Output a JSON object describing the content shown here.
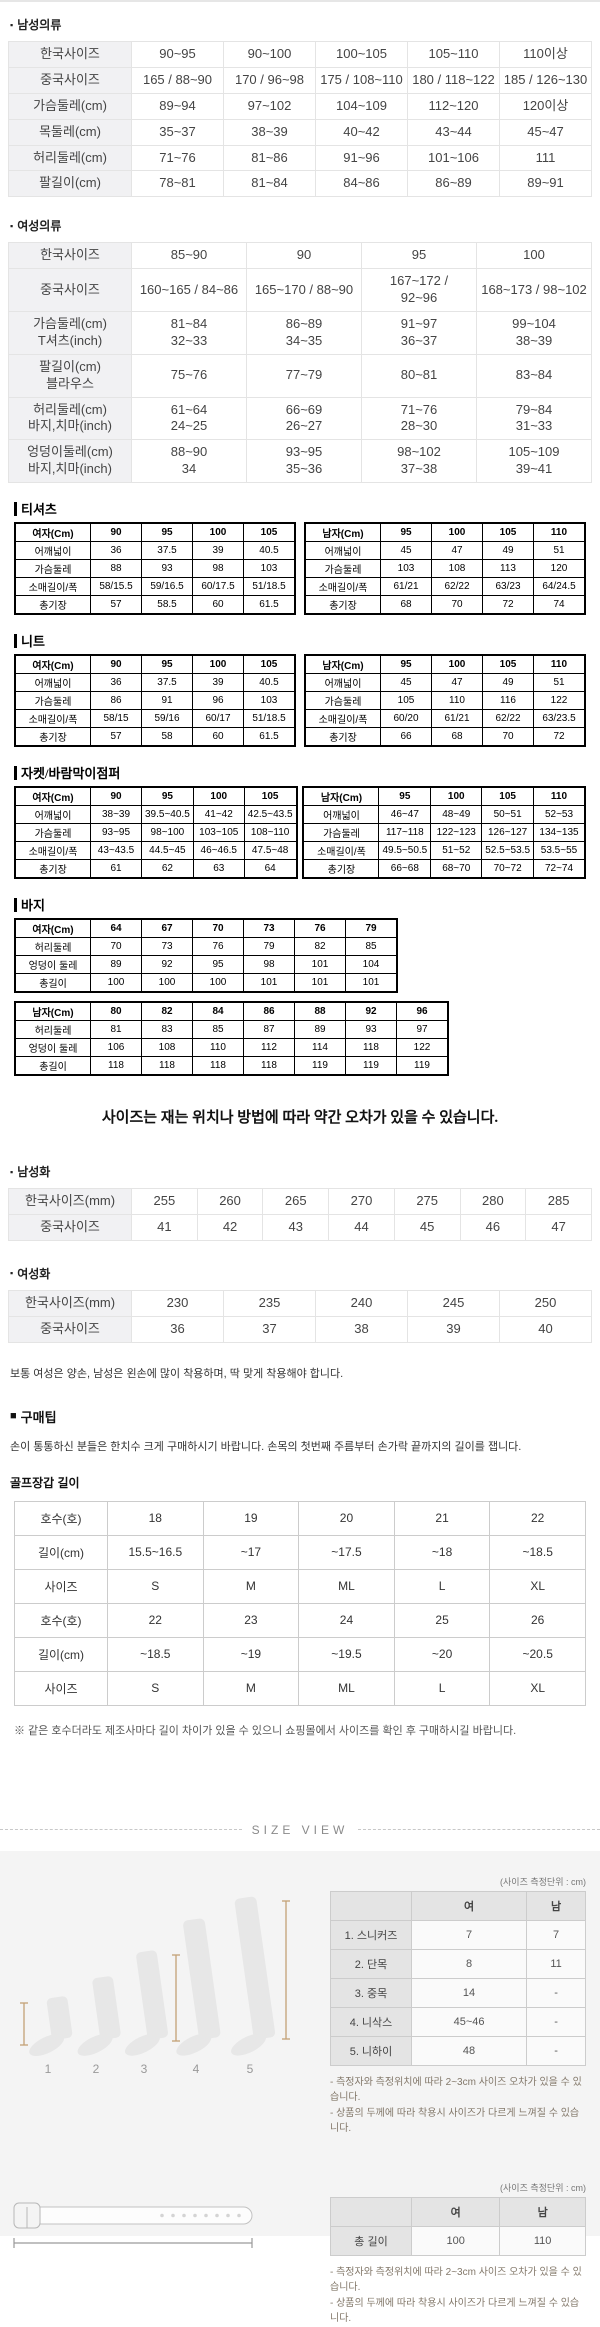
{
  "colors": {
    "panel_bg": "#f4f4f4",
    "grid_label_bg": "#f1f1f3",
    "grid_border": "#e4e4e4",
    "bitmap_border": "#000000",
    "size_view_header_bg": "#e4e4e4",
    "measure_line": "#c4a276",
    "note_brown": "#83786a"
  },
  "sections": {
    "mens_clothing": {
      "bullet": "▪",
      "title": "남성의류",
      "table": {
        "rows": [
          {
            "label": "한국사이즈",
            "values": [
              "90~95",
              "90~100",
              "100~105",
              "105~110",
              "110이상"
            ]
          },
          {
            "label": "중국사이즈",
            "values": [
              "165 / 88~90",
              "170 / 96~98",
              "175 / 108~110",
              "180 / 118~122",
              "185 / 126~130"
            ]
          },
          {
            "label": "가슴둘레(cm)",
            "values": [
              "89~94",
              "97~102",
              "104~109",
              "112~120",
              "120이상"
            ]
          },
          {
            "label": "목둘레(cm)",
            "values": [
              "35~37",
              "38~39",
              "40~42",
              "43~44",
              "45~47"
            ]
          },
          {
            "label": "허리둘레(cm)",
            "values": [
              "71~76",
              "81~86",
              "91~96",
              "101~106",
              "111"
            ]
          },
          {
            "label": "팔길이(cm)",
            "values": [
              "78~81",
              "81~84",
              "84~86",
              "86~89",
              "89~91"
            ]
          }
        ]
      }
    },
    "womens_clothing": {
      "bullet": "▪",
      "title": "여성의류",
      "table": {
        "rows": [
          {
            "label": "한국사이즈",
            "values": [
              "85~90",
              "90",
              "95",
              "100"
            ]
          },
          {
            "label": "중국사이즈",
            "values": [
              "160~165 / 84~86",
              "165~170 / 88~90",
              "167~172 /\n92~96",
              "168~173 / 98~102"
            ]
          },
          {
            "label": "가슴둘레(cm)\nT셔츠(inch)",
            "values": [
              "81~84\n32~33",
              "86~89\n34~35",
              "91~97\n36~37",
              "99~104\n38~39"
            ]
          },
          {
            "label": "팔길이(cm)\n블라우스",
            "values": [
              "75~76",
              "77~79",
              "80~81",
              "83~84"
            ]
          },
          {
            "label": "허리둘레(cm)\n바지,치마(inch)",
            "values": [
              "61~64\n24~25",
              "66~69\n26~27",
              "71~76\n28~30",
              "79~84\n31~33"
            ]
          },
          {
            "label": "엉덩이둘레(cm)\n바지,치마(inch)",
            "values": [
              "88~90\n34",
              "93~95\n35~36",
              "98~102\n37~38",
              "105~109\n39~41"
            ]
          }
        ]
      }
    },
    "tshirt": {
      "title": "티셔츠",
      "women": {
        "header_label": "여자(Cm)",
        "headers": [
          "90",
          "95",
          "100",
          "105"
        ],
        "rows": [
          {
            "label": "어깨넓이",
            "values": [
              "36",
              "37.5",
              "39",
              "40.5"
            ]
          },
          {
            "label": "가슴둘레",
            "values": [
              "88",
              "93",
              "98",
              "103"
            ]
          },
          {
            "label": "소매길이/폭",
            "values": [
              "58/15.5",
              "59/16.5",
              "60/17.5",
              "51/18.5"
            ]
          },
          {
            "label": "총기장",
            "values": [
              "57",
              "58.5",
              "60",
              "61.5"
            ]
          }
        ]
      },
      "men": {
        "header_label": "남자(Cm)",
        "headers": [
          "95",
          "100",
          "105",
          "110"
        ],
        "rows": [
          {
            "label": "어깨넓이",
            "values": [
              "45",
              "47",
              "49",
              "51"
            ]
          },
          {
            "label": "가슴둘레",
            "values": [
              "103",
              "108",
              "113",
              "120"
            ]
          },
          {
            "label": "소매길이/폭",
            "values": [
              "61/21",
              "62/22",
              "63/23",
              "64/24.5"
            ]
          },
          {
            "label": "총기장",
            "values": [
              "68",
              "70",
              "72",
              "74"
            ]
          }
        ]
      }
    },
    "knit": {
      "title": "니트",
      "women": {
        "header_label": "여자(Cm)",
        "headers": [
          "90",
          "95",
          "100",
          "105"
        ],
        "rows": [
          {
            "label": "어깨넓이",
            "values": [
              "36",
              "37.5",
              "39",
              "40.5"
            ]
          },
          {
            "label": "가슴둘레",
            "values": [
              "86",
              "91",
              "96",
              "103"
            ]
          },
          {
            "label": "소매길이/폭",
            "values": [
              "58/15",
              "59/16",
              "60/17",
              "51/18.5"
            ]
          },
          {
            "label": "총기장",
            "values": [
              "57",
              "58",
              "60",
              "61.5"
            ]
          }
        ]
      },
      "men": {
        "header_label": "남자(Cm)",
        "headers": [
          "95",
          "100",
          "105",
          "110"
        ],
        "rows": [
          {
            "label": "어깨넓이",
            "values": [
              "45",
              "47",
              "49",
              "51"
            ]
          },
          {
            "label": "가슴둘레",
            "values": [
              "105",
              "110",
              "116",
              "122"
            ]
          },
          {
            "label": "소매길이/폭",
            "values": [
              "60/20",
              "61/21",
              "62/22",
              "63/23.5"
            ]
          },
          {
            "label": "총기장",
            "values": [
              "66",
              "68",
              "70",
              "72"
            ]
          }
        ]
      }
    },
    "jacket": {
      "title": "자켓/바람막이점퍼",
      "women": {
        "header_label": "여자(Cm)",
        "headers": [
          "90",
          "95",
          "100",
          "105"
        ],
        "rows": [
          {
            "label": "어깨넓이",
            "values": [
              "38~39",
              "39.5~40.5",
              "41~42",
              "42.5~43.5"
            ]
          },
          {
            "label": "가슴둘레",
            "values": [
              "93~95",
              "98~100",
              "103~105",
              "108~110"
            ]
          },
          {
            "label": "소매길이/폭",
            "values": [
              "43~43.5",
              "44.5~45",
              "46~46.5",
              "47.5~48"
            ]
          },
          {
            "label": "총기장",
            "values": [
              "61",
              "62",
              "63",
              "64"
            ]
          }
        ]
      },
      "men": {
        "header_label": "남자(Cm)",
        "headers": [
          "95",
          "100",
          "105",
          "110"
        ],
        "rows": [
          {
            "label": "어깨넓이",
            "values": [
              "46~47",
              "48~49",
              "50~51",
              "52~53"
            ]
          },
          {
            "label": "가슴둘레",
            "values": [
              "117~118",
              "122~123",
              "126~127",
              "134~135"
            ]
          },
          {
            "label": "소매길이/폭",
            "values": [
              "49.5~50.5",
              "51~52",
              "52.5~53.5",
              "53.5~55"
            ]
          },
          {
            "label": "총기장",
            "values": [
              "66~68",
              "68~70",
              "70~72",
              "72~74"
            ]
          }
        ]
      }
    },
    "pants": {
      "title": "바지",
      "women": {
        "header_label": "여자(Cm)",
        "headers": [
          "64",
          "67",
          "70",
          "73",
          "76",
          "79"
        ],
        "rows": [
          {
            "label": "허리둘레",
            "values": [
              "70",
              "73",
              "76",
              "79",
              "82",
              "85"
            ]
          },
          {
            "label": "엉덩이 둘레",
            "values": [
              "89",
              "92",
              "95",
              "98",
              "101",
              "104"
            ]
          },
          {
            "label": "총길이",
            "values": [
              "100",
              "100",
              "100",
              "101",
              "101",
              "101"
            ]
          }
        ]
      },
      "men": {
        "header_label": "남자(Cm)",
        "headers": [
          "80",
          "82",
          "84",
          "86",
          "88",
          "92",
          "96"
        ],
        "rows": [
          {
            "label": "허리둘레",
            "values": [
              "81",
              "83",
              "85",
              "87",
              "89",
              "93",
              "97"
            ]
          },
          {
            "label": "엉덩이 둘레",
            "values": [
              "106",
              "108",
              "110",
              "112",
              "114",
              "118",
              "122"
            ]
          },
          {
            "label": "총길이",
            "values": [
              "118",
              "118",
              "118",
              "118",
              "119",
              "119",
              "119"
            ]
          }
        ]
      }
    },
    "size_note": "사이즈는 재는 위치나 방법에 따라 약간 오차가 있을 수 있습니다.",
    "mens_shoes": {
      "bullet": "▪",
      "title": "남성화",
      "table": {
        "rows": [
          {
            "label": "한국사이즈(mm)",
            "values": [
              "255",
              "260",
              "265",
              "270",
              "275",
              "280",
              "285"
            ]
          },
          {
            "label": "중국사이즈",
            "values": [
              "41",
              "42",
              "43",
              "44",
              "45",
              "46",
              "47"
            ]
          }
        ]
      }
    },
    "womens_shoes": {
      "bullet": "▪",
      "title": "여성화",
      "table": {
        "rows": [
          {
            "label": "한국사이즈(mm)",
            "values": [
              "230",
              "235",
              "240",
              "245",
              "250"
            ]
          },
          {
            "label": "중국사이즈",
            "values": [
              "36",
              "37",
              "38",
              "39",
              "40"
            ]
          }
        ]
      }
    },
    "glove_intro": "보통 여성은 양손, 남성은 왼손에 많이 착용하며, 딱 맞게 착용해야 합니다.",
    "tips": {
      "bullet": "■",
      "title": "구매팁",
      "body": "손이 통통하신 분들은 한치수 크게 구매하시기 바랍니다. 손목의 첫번째 주름부터 손가락 끝까지의 길이를 잽니다.",
      "glove_title": "골프장갑 길이",
      "glove_table": {
        "rows": [
          {
            "label": "호수(호)",
            "values": [
              "18",
              "19",
              "20",
              "21",
              "22"
            ]
          },
          {
            "label": "길이(cm)",
            "values": [
              "15.5~16.5",
              "~17",
              "~17.5",
              "~18",
              "~18.5"
            ]
          },
          {
            "label": "사이즈",
            "values": [
              "S",
              "M",
              "ML",
              "L",
              "XL"
            ]
          },
          {
            "label": "호수(호)",
            "values": [
              "22",
              "23",
              "24",
              "25",
              "26"
            ]
          },
          {
            "label": "길이(cm)",
            "values": [
              "~18.5",
              "~19",
              "~19.5",
              "~20",
              "~20.5"
            ]
          },
          {
            "label": "사이즈",
            "values": [
              "S",
              "M",
              "ML",
              "L",
              "XL"
            ]
          }
        ]
      },
      "note": "※ 같은 호수더라도 제조사마다 길이 차이가 있을 수 있으니 쇼핑몰에서 사이즈를 확인 후 구매하시길 바랍니다."
    },
    "size_view": {
      "title": "SIZE VIEW",
      "unit_label": "(사이즈 측정단위 : cm)",
      "socks": {
        "header_label": "",
        "headers": [
          "여",
          "남"
        ],
        "rows": [
          {
            "label": "1. 스니커즈",
            "values": [
              "7",
              "7"
            ]
          },
          {
            "label": "2. 단목",
            "values": [
              "8",
              "11"
            ]
          },
          {
            "label": "3. 중목",
            "values": [
              "14",
              "-"
            ]
          },
          {
            "label": "4. 니삭스",
            "values": [
              "45~46",
              "-"
            ]
          },
          {
            "label": "5. 니하이",
            "values": [
              "48",
              "-"
            ]
          }
        ]
      },
      "sock_numbers": [
        "1",
        "2",
        "3",
        "4",
        "5"
      ],
      "belt": {
        "header_label": "",
        "headers": [
          "여",
          "남"
        ],
        "rows": [
          {
            "label": "총 길이",
            "values": [
              "100",
              "110"
            ]
          }
        ]
      },
      "notes": [
        "- 측정자와 측정위치에 따라 2~3cm 사이즈 오차가 있을 수 있습니다.",
        "- 상품의 두께에 따라 착용시 사이즈가 다르게 느껴질 수 있습니다."
      ]
    }
  }
}
